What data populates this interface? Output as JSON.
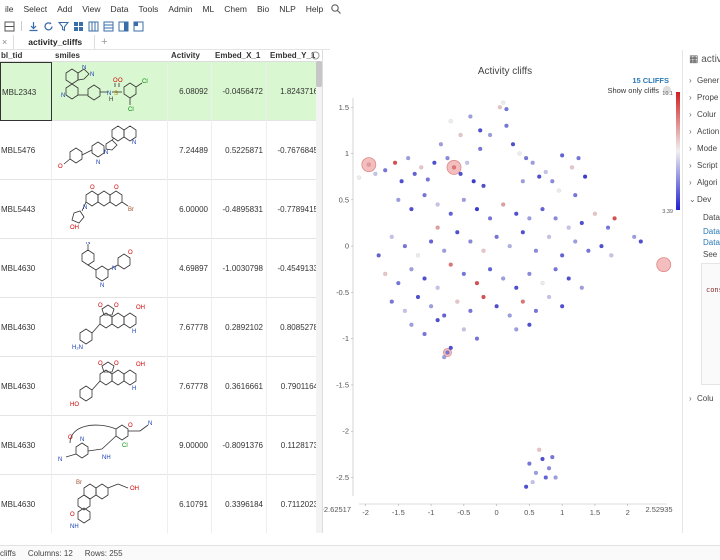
{
  "menu": [
    "ile",
    "Select",
    "Add",
    "View",
    "Data",
    "Tools",
    "Admin",
    "ML",
    "Chem",
    "Bio",
    "NLP",
    "Help"
  ],
  "tab": {
    "label": "activity_cliffs"
  },
  "columns": [
    "bl_tid",
    "smiles",
    "Activity",
    "Embed_X_1",
    "Embed_Y_1"
  ],
  "rows": [
    {
      "id": "MBL2343",
      "activity": "6.08092",
      "x": "-0.0456472",
      "y": "1.8243716"
    },
    {
      "id": "MBL5476",
      "activity": "7.24489",
      "x": "0.5225871",
      "y": "-0.7676845"
    },
    {
      "id": "MBL5443",
      "activity": "6.00000",
      "x": "-0.4895831",
      "y": "-0.7789415"
    },
    {
      "id": "MBL4630",
      "activity": "4.69897",
      "x": "-1.0030798",
      "y": "-0.4549133"
    },
    {
      "id": "MBL4630",
      "activity": "7.67778",
      "x": "0.2892102",
      "y": "0.8085278"
    },
    {
      "id": "MBL4630",
      "activity": "7.67778",
      "x": "0.3616661",
      "y": "0.7901164"
    },
    {
      "id": "MBL4630",
      "activity": "9.00000",
      "x": "-0.8091376",
      "y": "0.1128173"
    },
    {
      "id": "MBL4630",
      "activity": "6.10791",
      "x": "0.3396184",
      "y": "0.7112023"
    }
  ],
  "chart": {
    "title": "Activity cliffs",
    "cliffs": "15 CLIFFS",
    "show_only": "Show only cliffs",
    "x_min_label": "-2.62517",
    "x_max_label": "2.52935",
    "color_max": "10.1",
    "color_min": "3.39"
  },
  "chart_data": {
    "type": "scatter",
    "title": "Activity cliffs",
    "xlim": [
      -2.1,
      2.6
    ],
    "ylim": [
      -2.7,
      1.6
    ],
    "x_ticks": [
      "-2",
      "-1.5",
      "-1",
      "-0.5",
      "0",
      "0.5",
      "1",
      "1.5",
      "2"
    ],
    "y_ticks": [
      "1.5",
      "1",
      "0.5",
      "0",
      "-0.5",
      "-1",
      "-1.5",
      "-2",
      "-2.5"
    ],
    "x_range_labels": [
      "-2.62517",
      "2.52935"
    ],
    "color_scale": {
      "min": 3.39,
      "max": 10.1,
      "low_color": "#2020d0",
      "mid_color": "#f0f0f0",
      "high_color": "#d02020"
    },
    "highlighted": [
      {
        "x": -1.95,
        "y": 0.88,
        "r": 7
      },
      {
        "x": -0.65,
        "y": 0.85,
        "r": 7
      },
      {
        "x": 2.55,
        "y": -0.2,
        "r": 7
      },
      {
        "x": -0.75,
        "y": -1.15,
        "r": 4
      }
    ],
    "points": [
      [
        -2.1,
        0.74,
        0.5
      ],
      [
        -1.95,
        0.88,
        0.7
      ],
      [
        -1.85,
        0.78,
        0.4
      ],
      [
        -1.7,
        0.82,
        0.2
      ],
      [
        -1.55,
        0.9,
        0.9
      ],
      [
        -1.45,
        0.7,
        0.1
      ],
      [
        -1.35,
        0.95,
        0.3
      ],
      [
        -1.25,
        0.78,
        0.15
      ],
      [
        -1.15,
        0.85,
        0.6
      ],
      [
        -1.05,
        0.72,
        0.2
      ],
      [
        -0.95,
        0.9,
        0.1
      ],
      [
        -0.85,
        1.1,
        0.3
      ],
      [
        -0.75,
        0.95,
        0.25
      ],
      [
        -0.65,
        0.85,
        0.8
      ],
      [
        -0.55,
        0.78,
        0.1
      ],
      [
        -0.45,
        0.9,
        0.4
      ],
      [
        -0.35,
        0.7,
        0.05
      ],
      [
        -0.25,
        1.05,
        0.2
      ],
      [
        -0.1,
        1.2,
        0.3
      ],
      [
        0.05,
        1.5,
        0.6
      ],
      [
        0.15,
        1.3,
        0.2
      ],
      [
        0.25,
        1.1,
        0.1
      ],
      [
        0.35,
        1.0,
        0.5
      ],
      [
        0.45,
        0.95,
        0.2
      ],
      [
        0.55,
        0.9,
        0.3
      ],
      [
        0.65,
        0.75,
        0.1
      ],
      [
        0.75,
        0.8,
        0.4
      ],
      [
        0.85,
        0.7,
        0.25
      ],
      [
        1.0,
        0.98,
        0.15
      ],
      [
        1.15,
        0.85,
        0.6
      ],
      [
        1.25,
        0.95,
        0.2
      ],
      [
        1.35,
        0.75,
        0.05
      ],
      [
        -0.7,
        1.35,
        0.5
      ],
      [
        -0.55,
        1.2,
        0.6
      ],
      [
        -0.4,
        1.4,
        0.3
      ],
      [
        -0.25,
        1.25,
        0.1
      ],
      [
        0.1,
        1.55,
        0.5
      ],
      [
        -1.5,
        0.5,
        0.3
      ],
      [
        -1.3,
        0.4,
        0.1
      ],
      [
        -1.1,
        0.55,
        0.2
      ],
      [
        -0.9,
        0.45,
        0.4
      ],
      [
        -0.7,
        0.35,
        0.15
      ],
      [
        -0.5,
        0.5,
        0.3
      ],
      [
        -0.3,
        0.4,
        0.05
      ],
      [
        -0.1,
        0.3,
        0.2
      ],
      [
        0.1,
        0.45,
        0.7
      ],
      [
        0.3,
        0.35,
        0.1
      ],
      [
        0.5,
        0.3,
        0.3
      ],
      [
        0.7,
        0.4,
        0.15
      ],
      [
        0.9,
        0.3,
        0.25
      ],
      [
        1.1,
        0.2,
        0.4
      ],
      [
        1.3,
        0.25,
        0.1
      ],
      [
        1.5,
        0.35,
        0.6
      ],
      [
        1.7,
        0.2,
        0.2
      ],
      [
        1.8,
        0.3,
        0.9
      ],
      [
        2.1,
        0.1,
        0.3
      ],
      [
        2.2,
        0.05,
        0.1
      ],
      [
        -1.6,
        0.1,
        0.4
      ],
      [
        -1.4,
        0.0,
        0.2
      ],
      [
        -1.2,
        -0.1,
        0.5
      ],
      [
        -1.0,
        0.05,
        0.15
      ],
      [
        -0.8,
        -0.05,
        0.3
      ],
      [
        -0.6,
        0.15,
        0.1
      ],
      [
        -0.4,
        0.05,
        0.25
      ],
      [
        -0.2,
        -0.05,
        0.6
      ],
      [
        0.0,
        0.1,
        0.2
      ],
      [
        0.2,
        0.0,
        0.35
      ],
      [
        0.4,
        0.15,
        0.1
      ],
      [
        0.6,
        -0.05,
        0.25
      ],
      [
        0.8,
        0.1,
        0.4
      ],
      [
        1.0,
        -0.1,
        0.15
      ],
      [
        1.2,
        0.05,
        0.3
      ],
      [
        1.4,
        -0.05,
        0.2
      ],
      [
        1.6,
        0.0,
        0.1
      ],
      [
        -1.7,
        -0.3,
        0.6
      ],
      [
        -1.5,
        -0.4,
        0.2
      ],
      [
        -1.3,
        -0.25,
        0.3
      ],
      [
        -1.1,
        -0.35,
        0.1
      ],
      [
        -0.9,
        -0.45,
        0.4
      ],
      [
        -0.7,
        -0.2,
        0.8
      ],
      [
        -0.5,
        -0.3,
        0.2
      ],
      [
        -0.3,
        -0.4,
        0.9
      ],
      [
        -0.1,
        -0.25,
        0.15
      ],
      [
        0.1,
        -0.35,
        0.3
      ],
      [
        0.3,
        -0.45,
        0.1
      ],
      [
        0.5,
        -0.3,
        0.25
      ],
      [
        0.7,
        -0.4,
        0.5
      ],
      [
        0.9,
        -0.25,
        0.2
      ],
      [
        1.1,
        -0.35,
        0.1
      ],
      [
        1.3,
        -0.45,
        0.3
      ],
      [
        -1.6,
        -0.6,
        0.2
      ],
      [
        -1.4,
        -0.7,
        0.4
      ],
      [
        -1.2,
        -0.55,
        0.1
      ],
      [
        -1.0,
        -0.65,
        0.3
      ],
      [
        -0.8,
        -0.75,
        0.15
      ],
      [
        -0.6,
        -0.6,
        0.6
      ],
      [
        -0.4,
        -0.7,
        0.2
      ],
      [
        -0.2,
        -0.55,
        0.9
      ],
      [
        0.0,
        -0.65,
        0.1
      ],
      [
        0.2,
        -0.75,
        0.3
      ],
      [
        0.4,
        -0.6,
        0.8
      ],
      [
        0.6,
        -0.7,
        0.2
      ],
      [
        0.8,
        -0.55,
        0.4
      ],
      [
        1.0,
        -0.65,
        0.1
      ],
      [
        -1.3,
        -0.85,
        0.3
      ],
      [
        -1.1,
        -0.95,
        0.2
      ],
      [
        -0.9,
        -0.8,
        0.1
      ],
      [
        -0.5,
        -0.9,
        0.4
      ],
      [
        -0.3,
        -1.0,
        0.2
      ],
      [
        0.3,
        -0.9,
        0.3
      ],
      [
        0.5,
        -0.85,
        0.1
      ],
      [
        -0.75,
        -1.15,
        0.2
      ],
      [
        -0.8,
        -1.2,
        0.3
      ],
      [
        -0.7,
        -1.1,
        0.1
      ],
      [
        0.5,
        -2.35,
        0.2
      ],
      [
        0.6,
        -2.45,
        0.3
      ],
      [
        0.7,
        -2.3,
        0.1
      ],
      [
        0.8,
        -2.4,
        0.25
      ],
      [
        0.55,
        -2.55,
        0.4
      ],
      [
        0.75,
        -2.5,
        0.15
      ],
      [
        0.65,
        -2.2,
        0.6
      ],
      [
        0.85,
        -2.28,
        0.2
      ],
      [
        0.45,
        -2.6,
        0.1
      ],
      [
        0.9,
        -2.5,
        0.3
      ],
      [
        0.15,
        1.48,
        0.2
      ],
      [
        -0.9,
        0.2,
        0.7
      ],
      [
        0.95,
        0.6,
        0.5
      ],
      [
        1.2,
        0.55,
        0.2
      ],
      [
        -0.2,
        0.65,
        0.1
      ],
      [
        0.4,
        0.7,
        0.3
      ],
      [
        -1.8,
        -0.1,
        0.15
      ],
      [
        1.75,
        -0.1,
        0.4
      ]
    ]
  },
  "panel": {
    "title": "activ",
    "items": [
      "Gener",
      "Prope",
      "Colur",
      "Action",
      "Mode",
      "Script",
      "Algori",
      "Dev"
    ],
    "sub": [
      "DataF",
      "DataF",
      "DataF",
      "See s"
    ],
    "code": "cons",
    "bottom": "Colu"
  },
  "status": {
    "cliffs": "cliffs",
    "columns": "Columns: 12",
    "rows": "Rows: 255"
  },
  "colors": {
    "accent": "#2a7ab8",
    "selected_row": "#d9f7d0"
  }
}
